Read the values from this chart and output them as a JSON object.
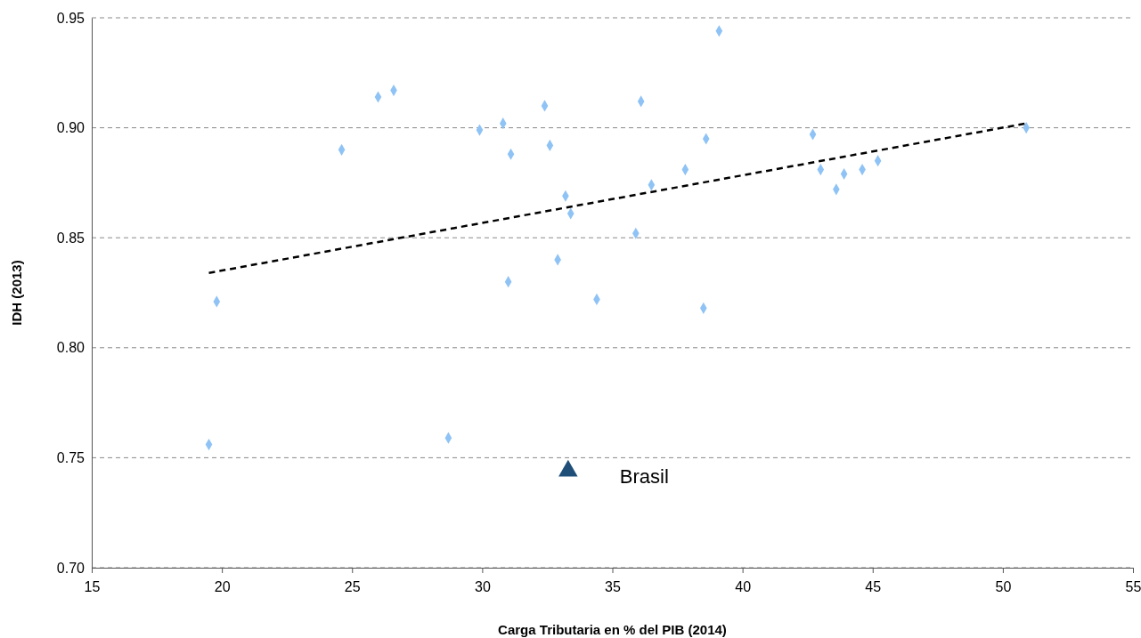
{
  "chart_data": {
    "type": "scatter",
    "xlabel": "Carga Tributaria en % del PIB (2014)",
    "ylabel": "IDH (2013)",
    "xlim": [
      15,
      55
    ],
    "xticks": [
      15,
      20,
      25,
      30,
      35,
      40,
      45,
      50,
      55
    ],
    "ylim": [
      0.7,
      0.95
    ],
    "yticks": [
      {
        "value": 0.7,
        "label": "0.70"
      },
      {
        "value": 0.75,
        "label": "0.75"
      },
      {
        "value": 0.8,
        "label": "0.80"
      },
      {
        "value": 0.85,
        "label": "0.85"
      },
      {
        "value": 0.9,
        "label": "0.90"
      },
      {
        "value": 0.95,
        "label": "0.95"
      }
    ],
    "grid": "y",
    "legend": false,
    "marker": "diamond",
    "series": [
      {
        "color": "#8fc3f5",
        "x": [
          19.5,
          19.8,
          24.6,
          26.0,
          26.6,
          28.7,
          29.9,
          30.8,
          31.0,
          31.1,
          32.4,
          32.6,
          32.9,
          33.2,
          33.4,
          34.4,
          35.9,
          36.1,
          36.5,
          37.8,
          38.5,
          38.6,
          39.1,
          42.7,
          43.0,
          43.6,
          43.9,
          44.6,
          45.2,
          50.9
        ],
        "values": [
          0.756,
          0.821,
          0.89,
          0.914,
          0.917,
          0.759,
          0.899,
          0.902,
          0.83,
          0.888,
          0.91,
          0.892,
          0.84,
          0.869,
          0.861,
          0.822,
          0.852,
          0.912,
          0.874,
          0.881,
          0.818,
          0.895,
          0.944,
          0.897,
          0.881,
          0.872,
          0.879,
          0.881,
          0.885,
          0.9
        ]
      },
      {
        "name": "Brasil",
        "color": "#1f4e79",
        "marker": "triangle",
        "x": [
          33.3
        ],
        "values": [
          0.744
        ]
      },
      {
        "type": "line",
        "color": "#000000",
        "line_style": "dashed",
        "marker": "none",
        "x": [
          19.5,
          50.9
        ],
        "values": [
          0.834,
          0.902
        ]
      }
    ]
  }
}
